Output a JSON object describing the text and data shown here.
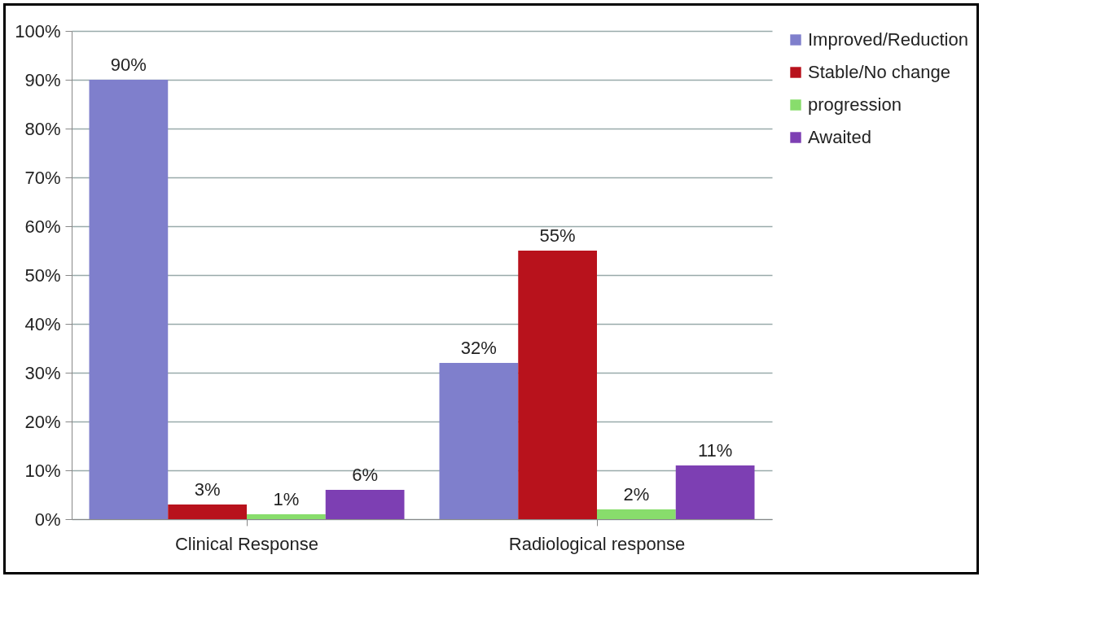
{
  "chart_data": {
    "type": "bar",
    "categories": [
      "Clinical Response",
      "Radiological response"
    ],
    "series": [
      {
        "name": "Improved/Reduction",
        "color": "#7f7fcc",
        "values": [
          90,
          32
        ],
        "value_labels": [
          "90%",
          "32%"
        ]
      },
      {
        "name": "Stable/No change",
        "color": "#b8121c",
        "values": [
          3,
          55
        ],
        "value_labels": [
          "3%",
          "55%"
        ]
      },
      {
        "name": "progression",
        "color": "#88dd6c",
        "values": [
          1,
          2
        ],
        "value_labels": [
          "1%",
          "2%"
        ]
      },
      {
        "name": "Awaited",
        "color": "#7d3fb3",
        "values": [
          6,
          11
        ],
        "value_labels": [
          "6%",
          "11%"
        ]
      }
    ],
    "ylim": [
      0,
      100
    ],
    "yticks": [
      {
        "value": 0,
        "label": "0%"
      },
      {
        "value": 10,
        "label": "10%"
      },
      {
        "value": 20,
        "label": "20%"
      },
      {
        "value": 30,
        "label": "30%"
      },
      {
        "value": 40,
        "label": "40%"
      },
      {
        "value": 50,
        "label": "50%"
      },
      {
        "value": 60,
        "label": "60%"
      },
      {
        "value": 70,
        "label": "70%"
      },
      {
        "value": 80,
        "label": "80%"
      },
      {
        "value": 90,
        "label": "90%"
      },
      {
        "value": 100,
        "label": "100%"
      }
    ],
    "grid": "y",
    "legend": "right"
  }
}
